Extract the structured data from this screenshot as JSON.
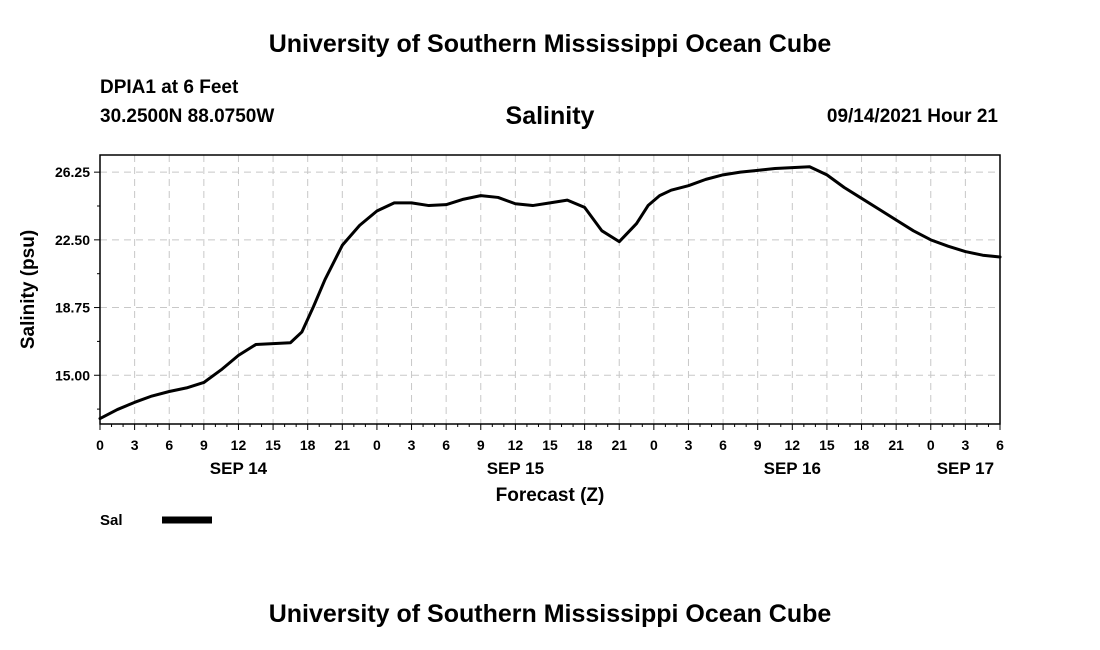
{
  "header": {
    "title": "University of Southern Mississippi Ocean Cube",
    "station": "DPIA1 at 6 Feet",
    "coordinates": "30.2500N  88.0750W",
    "variable_title": "Salinity",
    "datetime": "09/14/2021 Hour 21"
  },
  "footer": {
    "title": "University of Southern Mississippi Ocean Cube"
  },
  "chart_data": {
    "type": "line",
    "title": "Salinity",
    "xlabel": "Forecast (Z)",
    "ylabel": "Salinity (psu)",
    "xlim": [
      0,
      78
    ],
    "ylim": [
      12.3,
      27.2
    ],
    "grid": true,
    "grid_style": "dashed",
    "x_tick_hours": [
      0,
      3,
      6,
      9,
      12,
      15,
      18,
      21,
      24,
      27,
      30,
      33,
      36,
      39,
      42,
      45,
      48,
      51,
      54,
      57,
      60,
      63,
      66,
      69,
      72,
      75,
      78
    ],
    "x_tick_labels": [
      "0",
      "3",
      "6",
      "9",
      "12",
      "15",
      "18",
      "21",
      "0",
      "3",
      "6",
      "9",
      "12",
      "15",
      "18",
      "21",
      "0",
      "3",
      "6",
      "9",
      "12",
      "15",
      "18",
      "21",
      "0",
      "3",
      "6"
    ],
    "day_labels": [
      {
        "hour": 12,
        "label": "SEP 14"
      },
      {
        "hour": 36,
        "label": "SEP 15"
      },
      {
        "hour": 60,
        "label": "SEP 16"
      },
      {
        "hour": 75,
        "label": "SEP 17"
      }
    ],
    "y_ticks": [
      15.0,
      18.75,
      22.5,
      26.25
    ],
    "y_tick_labels": [
      "15.00",
      "18.75",
      "22.50",
      "26.25"
    ],
    "series": [
      {
        "name": "Sal",
        "color": "#000000",
        "x": [
          0,
          1.5,
          3,
          4.5,
          6,
          7.5,
          9,
          10.5,
          12,
          13.5,
          15,
          16.5,
          17.5,
          18.5,
          19.5,
          21,
          22.5,
          24,
          25.5,
          27,
          28.5,
          30,
          31.5,
          33,
          34.5,
          36,
          37.5,
          39,
          40.5,
          42,
          43.5,
          45,
          46.5,
          47.5,
          48.5,
          49.5,
          51,
          52.5,
          54,
          55.5,
          57,
          58.5,
          60,
          61.5,
          63,
          64.5,
          66,
          67.5,
          69,
          70.5,
          72,
          73.5,
          75,
          76.5,
          78
        ],
        "values": [
          12.6,
          13.1,
          13.5,
          13.85,
          14.1,
          14.3,
          14.6,
          15.3,
          16.1,
          16.7,
          16.75,
          16.8,
          17.4,
          18.8,
          20.3,
          22.2,
          23.3,
          24.1,
          24.55,
          24.55,
          24.4,
          24.45,
          24.75,
          24.95,
          24.85,
          24.5,
          24.4,
          24.55,
          24.7,
          24.3,
          23.0,
          22.4,
          23.4,
          24.4,
          24.95,
          25.25,
          25.5,
          25.85,
          26.1,
          26.25,
          26.35,
          26.45,
          26.5,
          26.55,
          26.1,
          25.4,
          24.8,
          24.2,
          23.6,
          23.0,
          22.5,
          22.15,
          21.85,
          21.65,
          21.55
        ]
      }
    ],
    "legend": {
      "placement": "bottom-left",
      "label": "Sal"
    }
  }
}
